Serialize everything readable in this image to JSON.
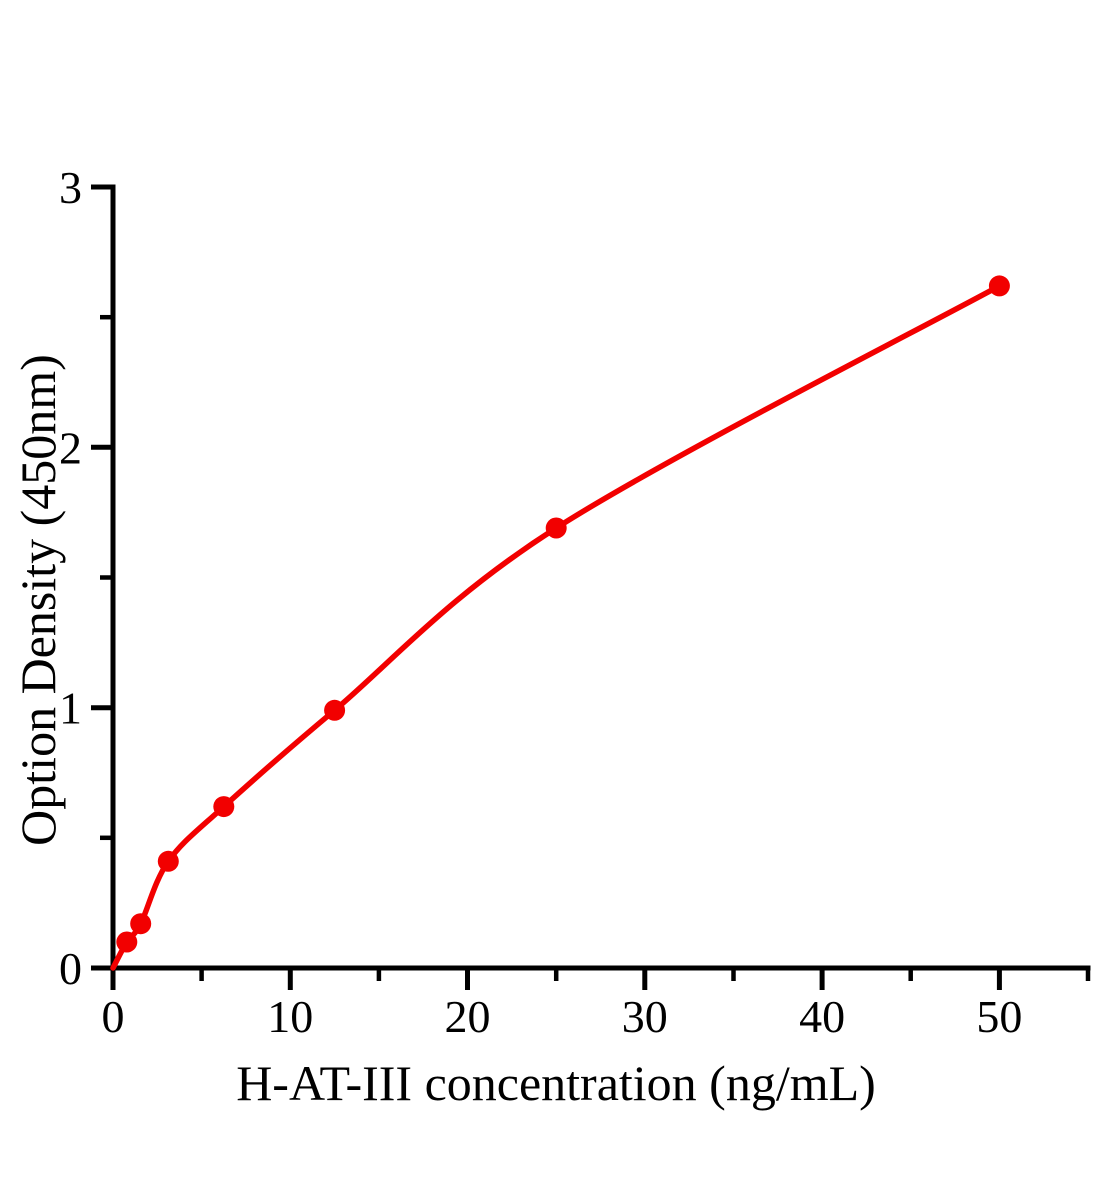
{
  "page": {
    "background": "#ffffff"
  },
  "chart_data": {
    "type": "scatter",
    "curve": "smooth-fit-line",
    "title": "",
    "xlabel": "H-AT-III concentration（ng/mL）",
    "ylabel": "Option Density（450nm）",
    "x": [
      0.78,
      1.56,
      3.12,
      6.25,
      12.5,
      25,
      50
    ],
    "y": [
      0.1,
      0.17,
      0.41,
      0.62,
      0.99,
      1.69,
      2.62
    ],
    "curve_start": {
      "x": 0,
      "y": 0
    },
    "xlim": [
      0,
      55
    ],
    "ylim": [
      0,
      3
    ],
    "x_major_ticks": [
      0,
      10,
      20,
      30,
      40,
      50
    ],
    "x_minor_ticks": [
      5,
      15,
      25,
      35,
      45,
      55
    ],
    "y_major_ticks": [
      0,
      1,
      2,
      3
    ],
    "y_minor_ticks": [
      0.5,
      1.5,
      2.5
    ],
    "grid": false,
    "legend": "none",
    "colors": {
      "line": "#f20000",
      "marker": "#f20000",
      "axis": "#000000",
      "text": "#000000"
    }
  }
}
